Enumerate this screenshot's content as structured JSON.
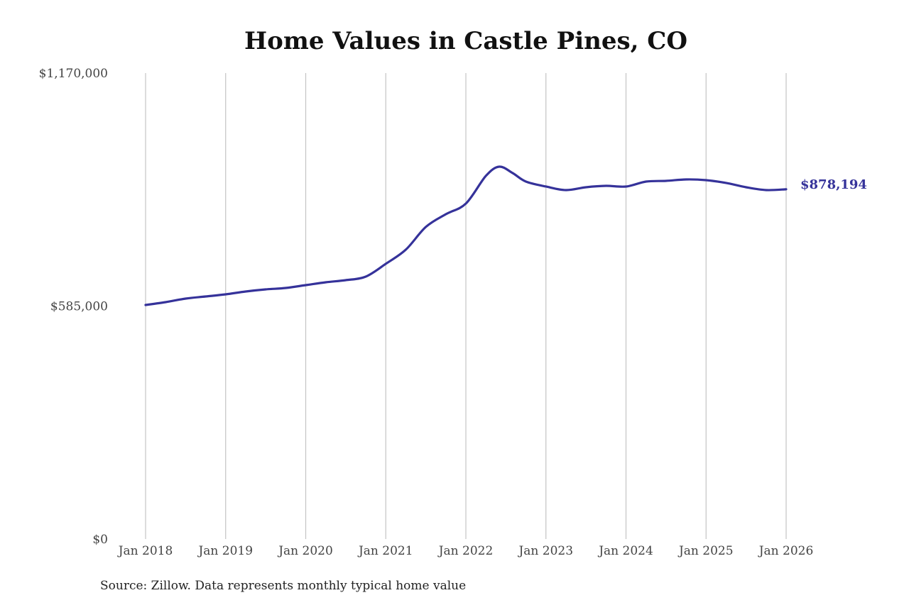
{
  "chart_data": {
    "type": "line",
    "title": "Home Values in Castle Pines, CO",
    "source": "Source: Zillow. Data represents monthly typical home value",
    "xlabel": "",
    "ylabel": "",
    "ylim": [
      0,
      1170000
    ],
    "y_ticks": [
      {
        "value": 0,
        "label": "$0"
      },
      {
        "value": 585000,
        "label": "$585,000"
      },
      {
        "value": 1170000,
        "label": "$1,170,000"
      }
    ],
    "x_ticks": [
      "Jan 2018",
      "Jan 2019",
      "Jan 2020",
      "Jan 2021",
      "Jan 2022",
      "Jan 2023",
      "Jan 2024",
      "Jan 2025",
      "Jan 2026"
    ],
    "grid": "vertical lines at x ticks",
    "line_color": "#35329a",
    "end_label": "$878,194",
    "series": [
      {
        "x": [
          "2018-01",
          "2018-04",
          "2018-07",
          "2018-10",
          "2019-01",
          "2019-04",
          "2019-07",
          "2019-10",
          "2020-01",
          "2020-04",
          "2020-07",
          "2020-10",
          "2021-01",
          "2021-04",
          "2021-07",
          "2021-10",
          "2022-01",
          "2022-04",
          "2022-06",
          "2022-08",
          "2022-10",
          "2023-01",
          "2023-04",
          "2023-07",
          "2023-10",
          "2024-01",
          "2024-04",
          "2024-07",
          "2024-10",
          "2025-01",
          "2025-04",
          "2025-07",
          "2025-10",
          "2026-01"
        ],
        "values": [
          587700,
          594800,
          603700,
          609000,
          614400,
          621500,
          626800,
          630400,
          637500,
          644700,
          650000,
          658900,
          691000,
          726600,
          783600,
          815600,
          842300,
          911800,
          934900,
          919000,
          897500,
          885100,
          876200,
          883300,
          886800,
          885100,
          897500,
          899300,
          902900,
          901100,
          894000,
          883300,
          876200,
          878194
        ]
      }
    ]
  }
}
